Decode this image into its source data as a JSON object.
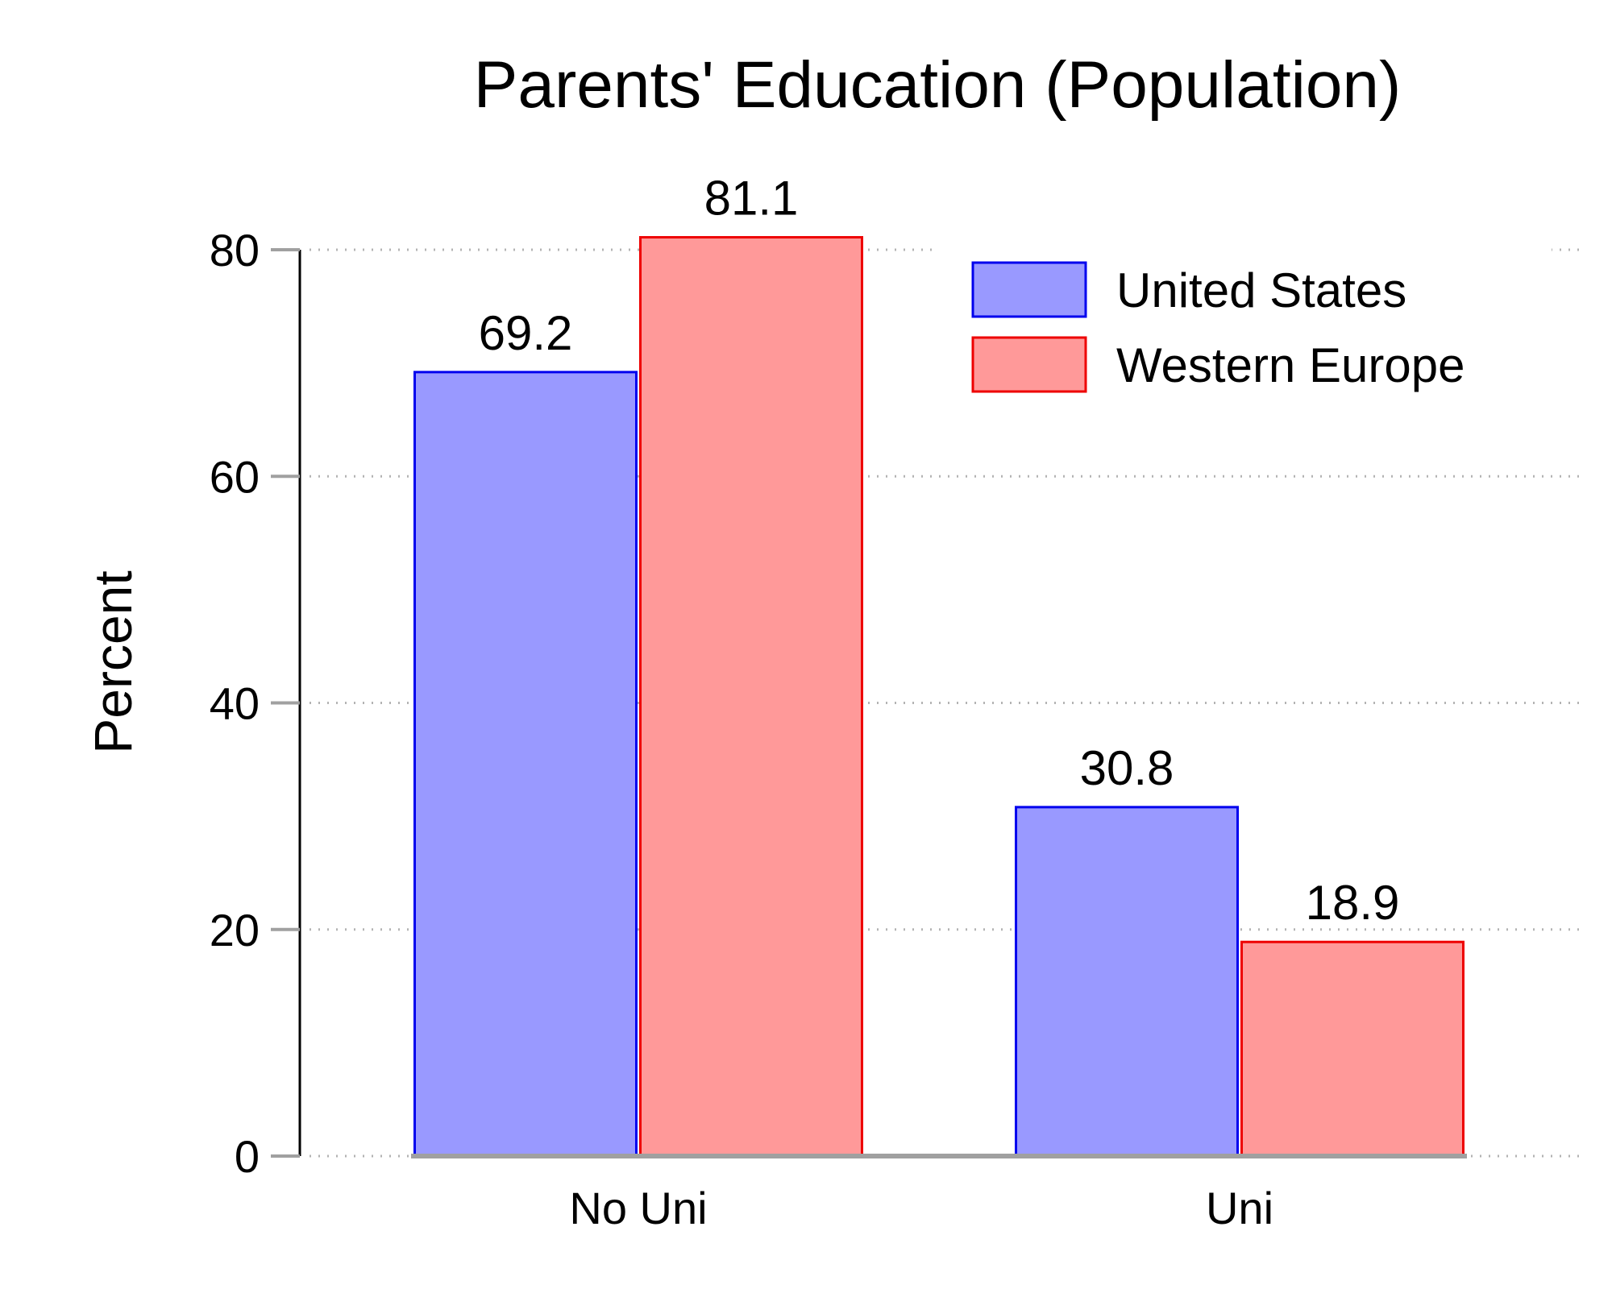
{
  "chart_data": {
    "type": "bar",
    "title": "Parents' Education (Population)",
    "xlabel": "",
    "ylabel": "Percent",
    "categories": [
      "No Uni",
      "Uni"
    ],
    "series": [
      {
        "name": "United States",
        "values": [
          69.2,
          30.8
        ],
        "labels": [
          "69.2",
          "30.8"
        ],
        "fill": "#9999ff",
        "stroke": "#0000ee"
      },
      {
        "name": "Western Europe",
        "values": [
          81.1,
          18.9
        ],
        "labels": [
          "81.1",
          "18.9"
        ],
        "fill": "#ff9999",
        "stroke": "#ee0000"
      }
    ],
    "ylim": [
      0,
      80
    ],
    "yticks": [
      0,
      20,
      40,
      60,
      80
    ],
    "ytick_labels": [
      "0",
      "20",
      "40",
      "60",
      "80"
    ],
    "grid": true,
    "legend_position": "top-right"
  }
}
